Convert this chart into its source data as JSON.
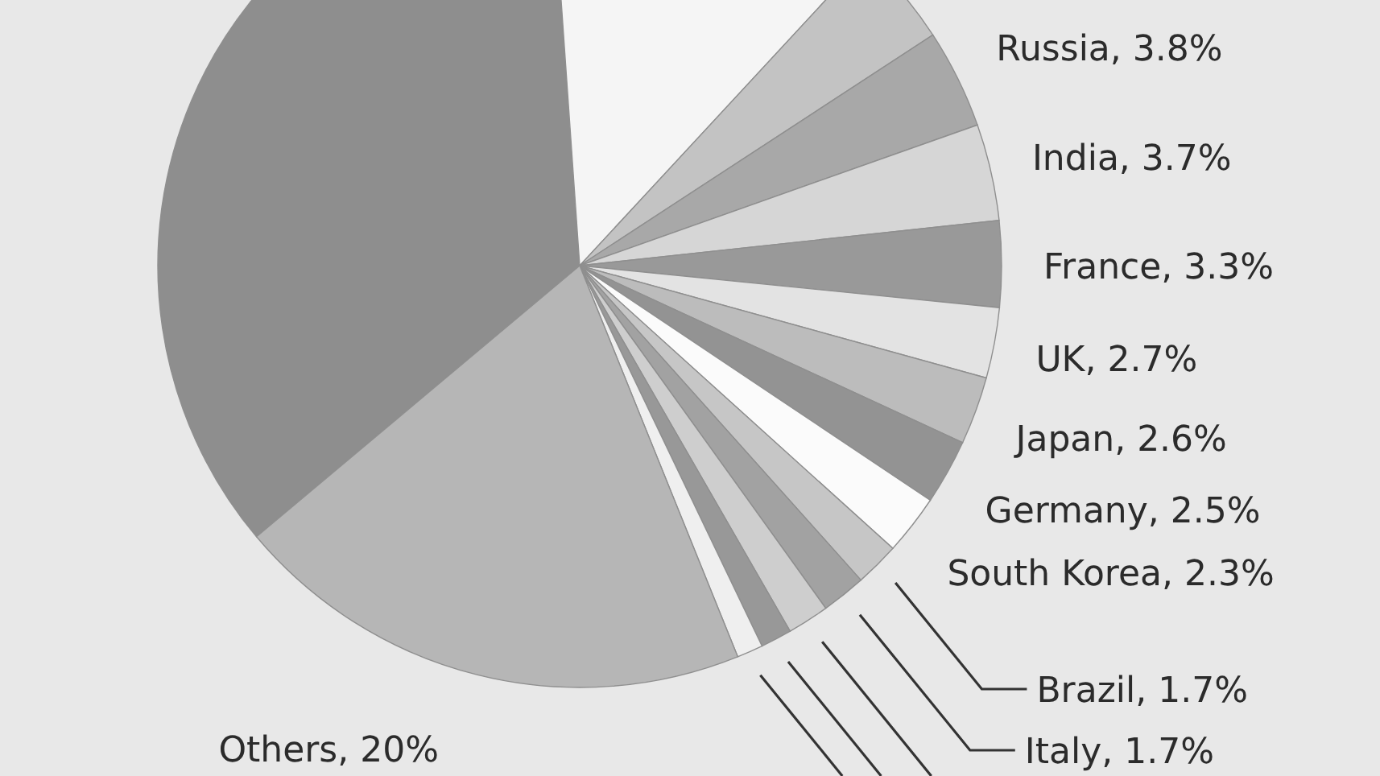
{
  "chart_data": {
    "type": "pie",
    "categories": [
      null,
      null,
      null,
      "Russia",
      "India",
      "France",
      "UK",
      "Japan",
      "Germany",
      "South Korea",
      "Brazil",
      "Italy",
      null,
      null,
      null,
      "Others"
    ],
    "values": [
      35,
      13,
      3.9,
      3.8,
      3.7,
      3.3,
      2.7,
      2.6,
      2.5,
      2.3,
      1.7,
      1.7,
      1.6,
      1.2,
      1.0,
      20
    ],
    "colors": [
      "#8e8e8e",
      "#f5f5f5",
      "#c3c3c3",
      "#a8a8a8",
      "#d6d6d6",
      "#999999",
      "#e3e3e3",
      "#bcbcbc",
      "#939393",
      "#fbfbfb",
      "#c6c6c6",
      "#a2a2a2",
      "#cecece",
      "#989898",
      "#efefef",
      "#b6b6b6"
    ],
    "value_labels": [
      null,
      null,
      null,
      "3.8%",
      "3.7%",
      "3.3%",
      "2.7%",
      "2.6%",
      "2.5%",
      "2.3%",
      "1.7%",
      "1.7%",
      null,
      null,
      null,
      "20%"
    ]
  }
}
